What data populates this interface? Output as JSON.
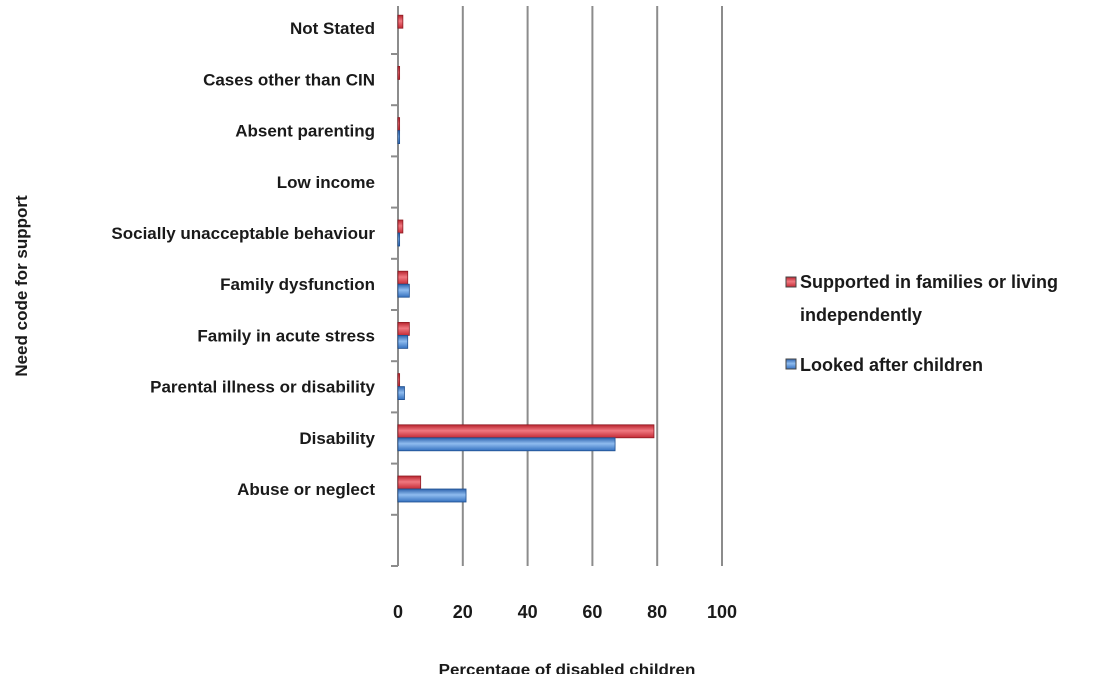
{
  "chart_data": {
    "type": "bar",
    "orientation": "horizontal",
    "categories": [
      "Abuse or neglect",
      "Disability",
      "Parental illness or disability",
      "Family in acute stress",
      "Family dysfunction",
      "Socially unacceptable behaviour",
      "Low income",
      "Absent parenting",
      "Cases other than CIN",
      "Not Stated"
    ],
    "series": [
      {
        "name": "Supported in families or living independently",
        "color": "#e0404a",
        "values": [
          7,
          79,
          0.5,
          3.5,
          3,
          1.5,
          0,
          0.5,
          0.5,
          1.5
        ]
      },
      {
        "name": "Looked after children",
        "color": "#4a86d0",
        "values": [
          21,
          67,
          2,
          3,
          3.5,
          0.5,
          0,
          0.5,
          0,
          0
        ]
      }
    ],
    "legend_labels": {
      "supported_line1": "Supported in families or living",
      "supported_line2": "independently",
      "looked_after": "Looked after children"
    },
    "xlabel": "Percentage of disabled children",
    "ylabel": "Need code for support",
    "xlim": [
      0,
      100
    ],
    "xticks": [
      "0",
      "20",
      "40",
      "60",
      "80",
      "100"
    ],
    "grid": true,
    "legend_position": "right"
  }
}
